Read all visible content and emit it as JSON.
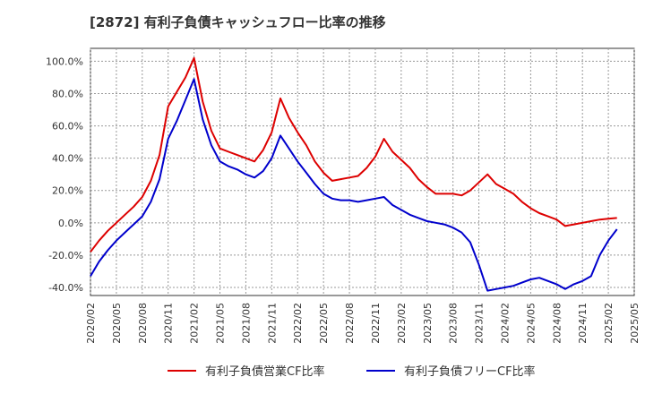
{
  "chart_data": {
    "type": "line",
    "title": "[2872]  有利子負債キャッシュフロー比率の推移",
    "xlabel": "",
    "ylabel": "",
    "ylim": [
      -45,
      108
    ],
    "y_ticks": [
      -40,
      -20,
      0,
      20,
      40,
      60,
      80,
      100
    ],
    "y_tick_labels": [
      "-40.0%",
      "-20.0%",
      "0.0%",
      "20.0%",
      "40.0%",
      "60.0%",
      "80.0%",
      "100.0%"
    ],
    "x_tick_labels": [
      "2020/02",
      "2020/05",
      "2020/08",
      "2020/11",
      "2021/02",
      "2021/05",
      "2021/08",
      "2021/11",
      "2022/02",
      "2022/05",
      "2022/08",
      "2022/11",
      "2023/02",
      "2023/05",
      "2023/08",
      "2023/11",
      "2024/02",
      "2024/05",
      "2024/08",
      "2024/11",
      "2025/02",
      "2025/05"
    ],
    "grid": true,
    "legend_position": "bottom",
    "series": [
      {
        "name": "有利子負債営業CF比率",
        "color": "#dd0000",
        "values": [
          -18,
          -11,
          -5,
          0,
          5,
          10,
          16,
          26,
          42,
          72,
          81,
          90,
          102,
          75,
          57,
          46,
          44,
          42,
          40,
          38,
          45,
          56,
          77,
          65,
          56,
          48,
          38,
          31,
          26,
          27,
          28,
          29,
          34,
          41,
          52,
          44,
          39,
          34,
          27,
          22,
          18,
          18,
          18,
          17,
          20,
          25,
          30,
          24,
          21,
          18,
          13,
          9,
          6,
          4,
          2,
          -2,
          -1,
          0,
          1,
          2,
          2.5,
          3
        ]
      },
      {
        "name": "有利子負債フリーCF比率",
        "color": "#0000cc",
        "values": [
          -33,
          -24,
          -17,
          -11,
          -6,
          -1,
          4,
          13,
          27,
          52,
          63,
          76,
          89,
          64,
          48,
          38,
          35,
          33,
          30,
          28,
          32,
          40,
          54,
          46,
          38,
          31,
          24,
          18,
          15,
          14,
          14,
          13,
          14,
          15,
          16,
          11,
          8,
          5,
          3,
          1,
          0,
          -1,
          -3,
          -6,
          -12,
          -26,
          -42,
          -41,
          -40,
          -39,
          -37,
          -35,
          -34,
          -36,
          -38,
          -41,
          -38,
          -36,
          -33,
          -20,
          -11,
          -4
        ]
      }
    ]
  }
}
